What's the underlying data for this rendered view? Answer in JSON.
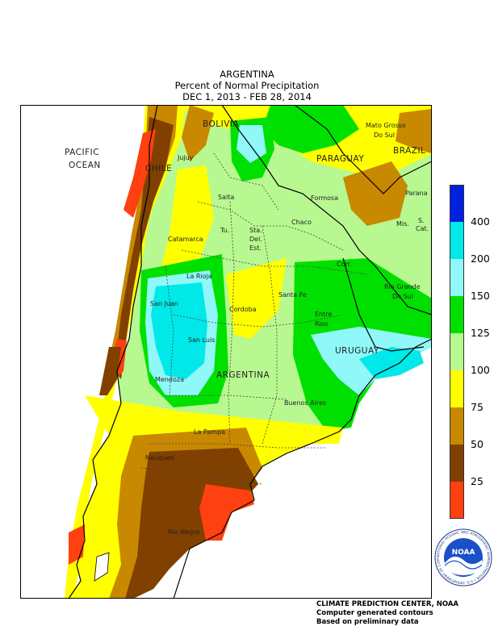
{
  "titles": {
    "line1": "ARGENTINA",
    "line2": "Percent of Normal Precipitation",
    "line3": "DEC  1, 2013 - FEB 28, 2014"
  },
  "places": {
    "pacific_ocean": "PACIFIC\nOCEAN",
    "pacific": "PACIFIC",
    "ocean": "OCEAN",
    "bolivia": "BOLIVIA",
    "chile": "CHILE",
    "paraguay": "PARAGUAY",
    "brazil": "BRAZIL",
    "uruguay": "URUGUAY",
    "argentina": "ARGENTINA",
    "mato_grosso_1": "Mato Grosso",
    "mato_grosso_2": "Do Sul",
    "jujuy": "Jujuy",
    "salta": "Salta",
    "formosa": "Formosa",
    "parana": "Parana",
    "chaco": "Chaco",
    "tu": "Tu.",
    "sta": "Sta.",
    "del": "Del.",
    "est": "Est.",
    "catamarca": "Catamarca",
    "mis": "Mis.",
    "s": "S.",
    "cat": "Cat.",
    "la_rioja": "La Rioja",
    "corr": "Corr.",
    "rio_grande_1": "Rio Grande",
    "rio_grande_2": "Do Sul",
    "san_juan": "San Juan",
    "santa_fe": "Santa Fe",
    "cordoba": "Cordoba",
    "entre": "Entre",
    "rios": "Rios",
    "san_luis": "San Luis",
    "mendoza": "Mendoza",
    "buenos_aires": "Buenos Aires",
    "la_pampa": "La Pampa",
    "neuquen": "Neuquen",
    "rio_negro": "Rio Negro"
  },
  "legend": {
    "labels": [
      "400",
      "200",
      "150",
      "125",
      "100",
      "75",
      "50",
      "25"
    ],
    "colors": [
      "#0020e0",
      "#00e8e8",
      "#90f8f8",
      "#00e000",
      "#b8f890",
      "#ffff00",
      "#c88800",
      "#804000",
      "#ff4010"
    ]
  },
  "colors": {
    "c25": "#ff4010",
    "c50": "#804000",
    "c75": "#c88800",
    "c100": "#ffff00",
    "c125": "#b8f890",
    "c150": "#00e000",
    "c200": "#90f8f8",
    "c400": "#00e8e8",
    "ocean": "#ffffff"
  },
  "logo": {
    "text": "NOAA",
    "ring_text": "NATIONAL OCEANIC AND ATMOSPHERIC ADMINISTRATION  •  U.S. DEPARTMENT OF COMMERCE"
  },
  "footer": {
    "line1": "CLIMATE PREDICTION CENTER, NOAA",
    "line2": "Computer generated contours",
    "line3": "Based on preliminary data"
  }
}
